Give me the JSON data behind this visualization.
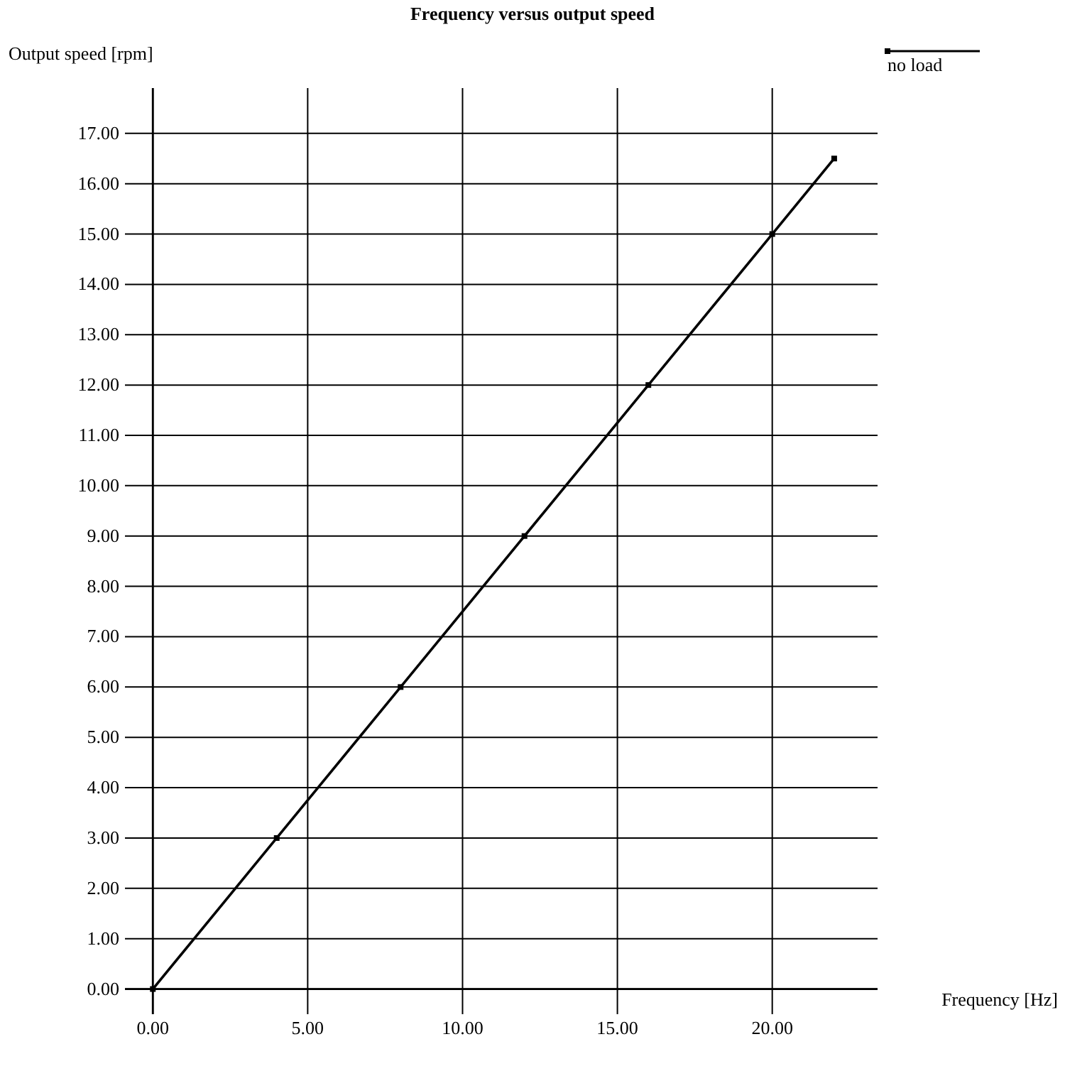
{
  "chart_data": {
    "type": "line",
    "title": "Frequency versus output speed",
    "xlabel": "Frequency [Hz]",
    "ylabel": "Output speed [rpm]",
    "x": [
      0,
      4,
      8,
      12,
      16,
      20,
      22
    ],
    "series": [
      {
        "name": "no load",
        "color": "#000000",
        "values": [
          0,
          3,
          6,
          9,
          12,
          15,
          16.5
        ]
      }
    ],
    "xlim": [
      -0.9,
      23.4
    ],
    "ylim": [
      -0.5,
      17.9
    ],
    "xticks": [
      {
        "value": 0,
        "label": "0.00"
      },
      {
        "value": 5,
        "label": "5.00"
      },
      {
        "value": 10,
        "label": "10.00"
      },
      {
        "value": 15,
        "label": "15.00"
      },
      {
        "value": 20,
        "label": "20.00"
      }
    ],
    "yticks": [
      {
        "value": 0,
        "label": "0.00"
      },
      {
        "value": 1,
        "label": "1.00"
      },
      {
        "value": 2,
        "label": "2.00"
      },
      {
        "value": 3,
        "label": "3.00"
      },
      {
        "value": 4,
        "label": "4.00"
      },
      {
        "value": 5,
        "label": "5.00"
      },
      {
        "value": 6,
        "label": "6.00"
      },
      {
        "value": 7,
        "label": "7.00"
      },
      {
        "value": 8,
        "label": "8.00"
      },
      {
        "value": 9,
        "label": "9.00"
      },
      {
        "value": 10,
        "label": "10.00"
      },
      {
        "value": 11,
        "label": "11.00"
      },
      {
        "value": 12,
        "label": "12.00"
      },
      {
        "value": 13,
        "label": "13.00"
      },
      {
        "value": 14,
        "label": "14.00"
      },
      {
        "value": 15,
        "label": "15.00"
      },
      {
        "value": 16,
        "label": "16.00"
      },
      {
        "value": 17,
        "label": "17.00"
      }
    ],
    "grid": true,
    "legend": "top right",
    "marker": "square",
    "line_style": "solid"
  }
}
